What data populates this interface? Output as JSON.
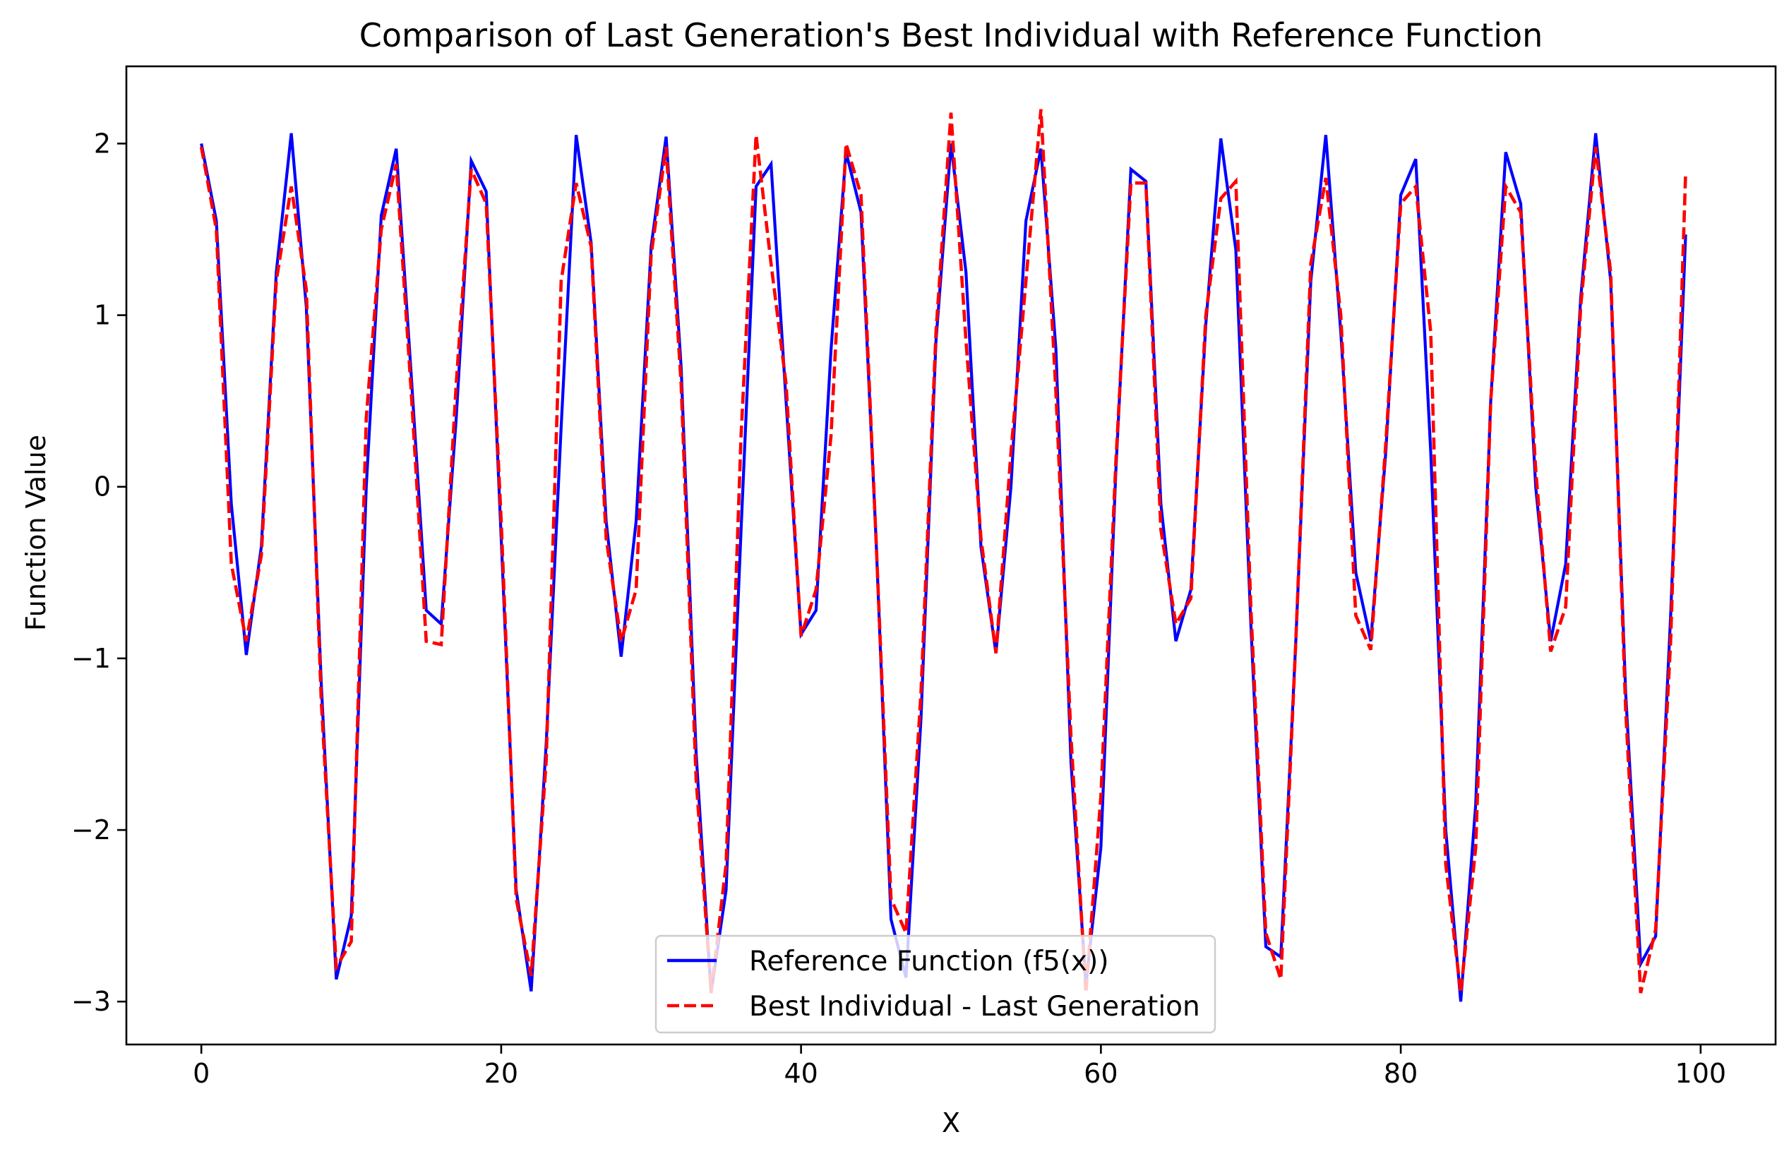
{
  "chart_data": {
    "type": "line",
    "title": "Comparison of Last Generation's Best Individual with Reference Function",
    "xlabel": "X",
    "ylabel": "Function Value",
    "xlim": [
      -5,
      105
    ],
    "ylim": [
      -3.25,
      2.45
    ],
    "x_ticks": [
      0,
      20,
      40,
      60,
      80,
      100
    ],
    "x_tick_labels": [
      "0",
      "20",
      "40",
      "60",
      "80",
      "100"
    ],
    "y_ticks": [
      2,
      1,
      0,
      -1,
      -2,
      -3
    ],
    "y_tick_labels": [
      "2",
      "1",
      "0",
      "−1",
      "−2",
      "−3"
    ],
    "grid": false,
    "legend_position": "lower-center",
    "series": [
      {
        "name": "Reference Function (f5(x))",
        "color": "#0000ff",
        "line_style": "solid",
        "x": [
          0,
          1,
          2,
          3,
          4,
          5,
          6,
          7,
          8,
          9,
          10,
          11,
          12,
          13,
          14,
          15,
          16,
          17,
          18,
          19,
          20,
          21,
          22,
          23,
          24,
          25,
          26,
          27,
          28,
          29,
          30,
          31,
          32,
          33,
          34,
          35,
          36,
          37,
          38,
          39,
          40,
          41,
          42,
          43,
          44,
          45,
          46,
          47,
          48,
          49,
          50,
          51,
          52,
          53,
          54,
          55,
          56,
          57,
          58,
          59,
          60,
          61,
          62,
          63,
          64,
          65,
          66,
          67,
          68,
          69,
          70,
          71,
          72,
          73,
          74,
          75,
          76,
          77,
          78,
          79,
          80,
          81,
          82,
          83,
          84,
          85,
          86,
          87,
          88,
          89,
          90,
          91,
          92,
          93,
          94,
          95,
          96,
          97,
          98,
          99,
          100
        ],
        "y": [
          2.0,
          1.55,
          -0.1,
          -0.98,
          -0.35,
          1.25,
          2.06,
          1.05,
          -1.15,
          -2.87,
          -2.5,
          0.0,
          1.58,
          1.97,
          0.65,
          -0.72,
          -0.8,
          0.4,
          1.9,
          1.72,
          -0.3,
          -2.35,
          -2.94,
          -1.5,
          0.35,
          2.05,
          1.42,
          -0.2,
          -0.99,
          -0.2,
          1.4,
          2.04,
          0.7,
          -1.55,
          -2.95,
          -2.35,
          -0.25,
          1.75,
          1.88,
          0.5,
          -0.86,
          -0.72,
          0.8,
          1.95,
          1.6,
          -0.3,
          -2.52,
          -2.86,
          -1.35,
          0.85,
          2.0,
          1.25,
          -0.35,
          -0.97,
          0.0,
          1.55,
          1.97,
          0.8,
          -1.6,
          -2.9,
          -2.1,
          0.1,
          1.85,
          1.78,
          -0.1,
          -0.9,
          -0.6,
          0.95,
          2.03,
          1.38,
          -0.8,
          -2.68,
          -2.74,
          -0.9,
          1.2,
          2.05,
          0.9,
          -0.5,
          -0.9,
          0.2,
          1.7,
          1.91,
          0.2,
          -2.0,
          -3.0,
          -1.85,
          0.5,
          1.95,
          1.65,
          0.0,
          -0.9,
          -0.45,
          1.1,
          2.06,
          1.2,
          -1.2,
          -2.78,
          -2.62,
          -0.75,
          1.47,
          null
        ]
      },
      {
        "name": "Best Individual - Last Generation",
        "color": "#ff0000",
        "line_style": "dashed",
        "x": [
          0,
          1,
          2,
          3,
          4,
          5,
          6,
          7,
          8,
          9,
          10,
          11,
          12,
          13,
          14,
          15,
          16,
          17,
          18,
          19,
          20,
          21,
          22,
          23,
          24,
          25,
          26,
          27,
          28,
          29,
          30,
          31,
          32,
          33,
          34,
          35,
          36,
          37,
          38,
          39,
          40,
          41,
          42,
          43,
          44,
          45,
          46,
          47,
          48,
          49,
          50,
          51,
          52,
          53,
          54,
          55,
          56,
          57,
          58,
          59,
          60,
          61,
          62,
          63,
          64,
          65,
          66,
          67,
          68,
          69,
          70,
          71,
          72,
          73,
          74,
          75,
          76,
          77,
          78,
          79,
          80,
          81,
          82,
          83,
          84,
          85,
          86,
          87,
          88,
          89,
          90,
          91,
          92,
          93,
          94,
          95,
          96,
          97,
          98,
          99,
          100
        ],
        "y": [
          1.98,
          1.5,
          -0.45,
          -0.9,
          -0.4,
          1.2,
          1.75,
          1.15,
          -1.25,
          -2.8,
          -2.65,
          0.4,
          1.5,
          1.88,
          0.55,
          -0.9,
          -0.92,
          0.6,
          1.85,
          1.65,
          -0.2,
          -2.4,
          -2.85,
          -1.6,
          1.2,
          1.77,
          1.4,
          -0.3,
          -0.9,
          -0.6,
          1.35,
          1.98,
          0.6,
          -1.7,
          -2.95,
          -2.2,
          0.3,
          2.05,
          1.3,
          0.6,
          -0.87,
          -0.6,
          0.3,
          2.0,
          1.7,
          -0.3,
          -2.4,
          -2.6,
          -1.2,
          0.9,
          2.18,
          0.85,
          -0.3,
          -0.97,
          0.2,
          1.2,
          2.2,
          0.55,
          -1.45,
          -2.95,
          -1.8,
          0.15,
          1.77,
          1.77,
          -0.25,
          -0.8,
          -0.65,
          1.0,
          1.68,
          1.78,
          -0.7,
          -2.6,
          -2.87,
          -0.9,
          1.3,
          1.8,
          1.0,
          -0.75,
          -0.95,
          0.25,
          1.65,
          1.75,
          0.9,
          -2.2,
          -2.95,
          -2.1,
          0.5,
          1.75,
          1.6,
          0.1,
          -0.96,
          -0.7,
          1.05,
          1.98,
          1.25,
          -1.3,
          -2.95,
          -2.58,
          -0.9,
          1.83,
          null
        ]
      }
    ]
  }
}
